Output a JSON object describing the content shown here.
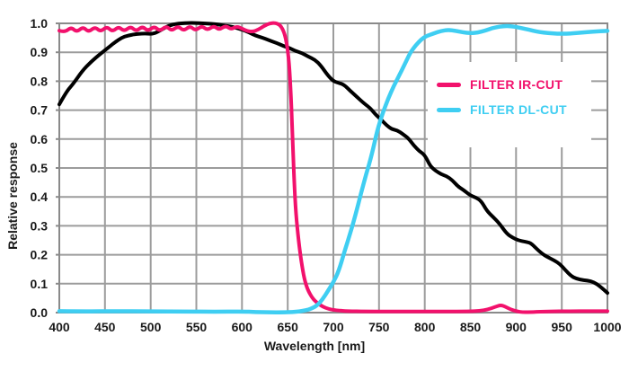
{
  "chart_data": {
    "type": "line",
    "title": "",
    "xlabel": "Wavelength [nm]",
    "ylabel": "Relative response",
    "xlim": [
      400,
      1000
    ],
    "ylim": [
      0.0,
      1.0
    ],
    "x_ticks": [
      400,
      450,
      500,
      550,
      600,
      650,
      700,
      750,
      800,
      850,
      900,
      950,
      1000
    ],
    "y_tick_labels": [
      "0.0",
      "0.1",
      "0.2",
      "0.3",
      "0.4",
      "0.5",
      "0.6",
      "0.7",
      "0.8",
      "0.9",
      "1.0"
    ],
    "grid": true,
    "colors": {
      "grid": "#9c9c9c",
      "frame": "#8a8a8a",
      "text": "#1a1a1a",
      "background": "#ffffff",
      "ir_cut": "#f2116c",
      "dl_cut": "#3fcef2",
      "sensor": "#000000"
    },
    "legend": {
      "position": "upper-right",
      "items": [
        {
          "label": "FILTER IR-CUT",
          "color": "#f2116c"
        },
        {
          "label": "FILTER DL-CUT",
          "color": "#3fcef2"
        }
      ]
    },
    "series": [
      {
        "name": "sensor-response-black-curve",
        "color": "#000000",
        "width": 4,
        "in_legend": false,
        "points": [
          [
            400,
            0.72
          ],
          [
            408,
            0.765
          ],
          [
            415,
            0.79
          ],
          [
            425,
            0.835
          ],
          [
            435,
            0.868
          ],
          [
            445,
            0.895
          ],
          [
            452,
            0.912
          ],
          [
            460,
            0.933
          ],
          [
            468,
            0.95
          ],
          [
            475,
            0.958
          ],
          [
            485,
            0.964
          ],
          [
            495,
            0.965
          ],
          [
            503,
            0.963
          ],
          [
            512,
            0.978
          ],
          [
            520,
            0.993
          ],
          [
            530,
            1.0
          ],
          [
            545,
            1.002
          ],
          [
            560,
            1.0
          ],
          [
            572,
            0.997
          ],
          [
            580,
            0.993
          ],
          [
            590,
            0.988
          ],
          [
            600,
            0.979
          ],
          [
            608,
            0.968
          ],
          [
            615,
            0.957
          ],
          [
            622,
            0.951
          ],
          [
            630,
            0.941
          ],
          [
            638,
            0.932
          ],
          [
            645,
            0.922
          ],
          [
            652,
            0.915
          ],
          [
            658,
            0.905
          ],
          [
            666,
            0.897
          ],
          [
            672,
            0.886
          ],
          [
            680,
            0.874
          ],
          [
            686,
            0.855
          ],
          [
            694,
            0.82
          ],
          [
            700,
            0.8
          ],
          [
            706,
            0.794
          ],
          [
            712,
            0.787
          ],
          [
            718,
            0.768
          ],
          [
            726,
            0.745
          ],
          [
            734,
            0.722
          ],
          [
            740,
            0.708
          ],
          [
            746,
            0.685
          ],
          [
            752,
            0.668
          ],
          [
            758,
            0.648
          ],
          [
            764,
            0.634
          ],
          [
            770,
            0.63
          ],
          [
            776,
            0.617
          ],
          [
            782,
            0.603
          ],
          [
            788,
            0.578
          ],
          [
            794,
            0.558
          ],
          [
            800,
            0.545
          ],
          [
            806,
            0.506
          ],
          [
            812,
            0.49
          ],
          [
            818,
            0.478
          ],
          [
            824,
            0.472
          ],
          [
            830,
            0.458
          ],
          [
            836,
            0.437
          ],
          [
            842,
            0.425
          ],
          [
            850,
            0.405
          ],
          [
            856,
            0.398
          ],
          [
            862,
            0.385
          ],
          [
            868,
            0.352
          ],
          [
            875,
            0.33
          ],
          [
            882,
            0.307
          ],
          [
            890,
            0.272
          ],
          [
            896,
            0.26
          ],
          [
            902,
            0.25
          ],
          [
            910,
            0.245
          ],
          [
            916,
            0.241
          ],
          [
            922,
            0.222
          ],
          [
            928,
            0.205
          ],
          [
            934,
            0.193
          ],
          [
            942,
            0.18
          ],
          [
            948,
            0.168
          ],
          [
            954,
            0.147
          ],
          [
            960,
            0.127
          ],
          [
            966,
            0.117
          ],
          [
            974,
            0.112
          ],
          [
            982,
            0.109
          ],
          [
            988,
            0.1
          ],
          [
            994,
            0.085
          ],
          [
            1000,
            0.068
          ]
        ]
      },
      {
        "name": "filter-ir-cut-curve",
        "color": "#f2116c",
        "width": 4,
        "in_legend": true,
        "points": [
          [
            400,
            0.975
          ],
          [
            406,
            0.969
          ],
          [
            413,
            0.987
          ],
          [
            419,
            0.97
          ],
          [
            426,
            0.988
          ],
          [
            432,
            0.97
          ],
          [
            439,
            0.988
          ],
          [
            445,
            0.971
          ],
          [
            452,
            0.989
          ],
          [
            458,
            0.971
          ],
          [
            465,
            0.989
          ],
          [
            471,
            0.972
          ],
          [
            478,
            0.99
          ],
          [
            484,
            0.972
          ],
          [
            491,
            0.99
          ],
          [
            497,
            0.973
          ],
          [
            504,
            0.99
          ],
          [
            510,
            0.973
          ],
          [
            517,
            0.991
          ],
          [
            523,
            0.974
          ],
          [
            530,
            0.991
          ],
          [
            536,
            0.974
          ],
          [
            543,
            0.991
          ],
          [
            549,
            0.975
          ],
          [
            556,
            0.992
          ],
          [
            562,
            0.976
          ],
          [
            569,
            0.992
          ],
          [
            575,
            0.977
          ],
          [
            582,
            0.993
          ],
          [
            588,
            0.979
          ],
          [
            594,
            0.99
          ],
          [
            600,
            0.982
          ],
          [
            606,
            0.973
          ],
          [
            612,
            0.971
          ],
          [
            618,
            0.979
          ],
          [
            624,
            0.991
          ],
          [
            630,
            1.0
          ],
          [
            636,
            1.002
          ],
          [
            641,
            0.996
          ],
          [
            645,
            0.978
          ],
          [
            648,
            0.948
          ],
          [
            651,
            0.885
          ],
          [
            653,
            0.79
          ],
          [
            655,
            0.63
          ],
          [
            657,
            0.46
          ],
          [
            659,
            0.34
          ],
          [
            662,
            0.245
          ],
          [
            665,
            0.175
          ],
          [
            668,
            0.118
          ],
          [
            672,
            0.078
          ],
          [
            677,
            0.05
          ],
          [
            682,
            0.034
          ],
          [
            688,
            0.021
          ],
          [
            695,
            0.012
          ],
          [
            703,
            0.008
          ],
          [
            715,
            0.005
          ],
          [
            735,
            0.004
          ],
          [
            760,
            0.004
          ],
          [
            790,
            0.004
          ],
          [
            820,
            0.004
          ],
          [
            848,
            0.004
          ],
          [
            860,
            0.006
          ],
          [
            869,
            0.011
          ],
          [
            877,
            0.02
          ],
          [
            883,
            0.026
          ],
          [
            888,
            0.021
          ],
          [
            894,
            0.011
          ],
          [
            901,
            0.004
          ],
          [
            908,
            0.001
          ],
          [
            918,
            0.002
          ],
          [
            935,
            0.004
          ],
          [
            960,
            0.005
          ],
          [
            980,
            0.005
          ],
          [
            1000,
            0.005
          ]
        ]
      },
      {
        "name": "filter-dl-cut-curve",
        "color": "#3fcef2",
        "width": 4.5,
        "in_legend": true,
        "points": [
          [
            400,
            0.005
          ],
          [
            430,
            0.004
          ],
          [
            460,
            0.005
          ],
          [
            500,
            0.004
          ],
          [
            540,
            0.004
          ],
          [
            570,
            0.003
          ],
          [
            600,
            0.004
          ],
          [
            615,
            0.002
          ],
          [
            630,
            0.001
          ],
          [
            645,
            0.001
          ],
          [
            655,
            0.002
          ],
          [
            663,
            0.004
          ],
          [
            670,
            0.008
          ],
          [
            676,
            0.014
          ],
          [
            682,
            0.024
          ],
          [
            688,
            0.045
          ],
          [
            694,
            0.075
          ],
          [
            700,
            0.105
          ],
          [
            706,
            0.145
          ],
          [
            712,
            0.21
          ],
          [
            718,
            0.27
          ],
          [
            724,
            0.335
          ],
          [
            730,
            0.41
          ],
          [
            736,
            0.48
          ],
          [
            742,
            0.545
          ],
          [
            748,
            0.63
          ],
          [
            754,
            0.69
          ],
          [
            760,
            0.74
          ],
          [
            766,
            0.783
          ],
          [
            772,
            0.82
          ],
          [
            778,
            0.858
          ],
          [
            784,
            0.898
          ],
          [
            790,
            0.924
          ],
          [
            796,
            0.944
          ],
          [
            802,
            0.957
          ],
          [
            810,
            0.965
          ],
          [
            818,
            0.974
          ],
          [
            826,
            0.978
          ],
          [
            834,
            0.974
          ],
          [
            842,
            0.969
          ],
          [
            850,
            0.966
          ],
          [
            858,
            0.968
          ],
          [
            866,
            0.975
          ],
          [
            874,
            0.984
          ],
          [
            882,
            0.989
          ],
          [
            890,
            0.991
          ],
          [
            898,
            0.989
          ],
          [
            906,
            0.984
          ],
          [
            914,
            0.978
          ],
          [
            922,
            0.972
          ],
          [
            930,
            0.968
          ],
          [
            940,
            0.965
          ],
          [
            950,
            0.964
          ],
          [
            960,
            0.965
          ],
          [
            972,
            0.968
          ],
          [
            984,
            0.971
          ],
          [
            1000,
            0.974
          ]
        ]
      }
    ]
  }
}
